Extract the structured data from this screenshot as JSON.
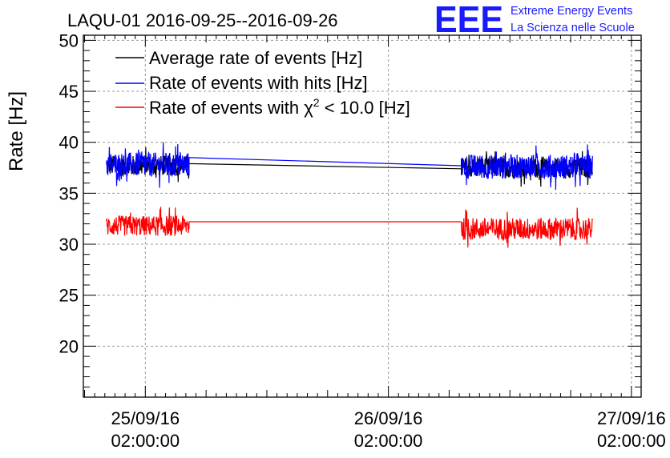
{
  "chart_data": {
    "type": "line",
    "title": "LAQU-01 2016-09-25--2016-09-26",
    "ylabel": "Rate [Hz]",
    "xlabel": "",
    "ylim": [
      15,
      50.5
    ],
    "xlim": [
      -0.255,
      2.04
    ],
    "grid": true,
    "legend_position": "top-left",
    "yticks": [
      20,
      25,
      30,
      35,
      40,
      45,
      50
    ],
    "ytick_labels": [
      "20",
      "25",
      "30",
      "35",
      "40",
      "45",
      "50"
    ],
    "xticks": [
      0,
      1,
      2
    ],
    "xtick_labels": [
      {
        "date": "25/09/16",
        "time": "02:00:00"
      },
      {
        "date": "26/09/16",
        "time": "02:00:00"
      },
      {
        "date": "27/09/16",
        "time": "02:00:00"
      }
    ],
    "series": [
      {
        "name": "Average rate of events [Hz]",
        "color": "#000000",
        "segments": [
          {
            "x_start": -0.16,
            "x_end": 0.18,
            "mean": 37.7,
            "noise": 1.0
          },
          {
            "x_start": 0.18,
            "x_end": 1.3,
            "line": [
              [
                0.18,
                37.9
              ],
              [
                1.3,
                37.4
              ]
            ]
          },
          {
            "x_start": 1.3,
            "x_end": 1.84,
            "mean": 37.5,
            "noise": 1.0
          }
        ]
      },
      {
        "name": "Rate of events with hits [Hz]",
        "color": "#0000ff",
        "segments": [
          {
            "x_start": -0.16,
            "x_end": 0.18,
            "mean": 37.8,
            "noise": 1.2
          },
          {
            "x_start": 0.18,
            "x_end": 1.3,
            "line": [
              [
                0.18,
                38.5
              ],
              [
                1.3,
                37.7
              ]
            ]
          },
          {
            "x_start": 1.3,
            "x_end": 1.84,
            "mean": 37.6,
            "noise": 1.2
          }
        ]
      },
      {
        "name": "Rate of events with χ² < 10.0 [Hz]",
        "color": "#ff0000",
        "legend_parts": {
          "before": "Rate of events with ",
          "chi": "χ",
          "sup": "2",
          "after": " < 10.0 [Hz]"
        },
        "segments": [
          {
            "x_start": -0.16,
            "x_end": 0.18,
            "mean": 31.8,
            "noise": 1.0
          },
          {
            "x_start": 0.18,
            "x_end": 1.3,
            "line": [
              [
                0.18,
                32.2
              ],
              [
                1.3,
                32.2
              ]
            ]
          },
          {
            "x_start": 1.3,
            "x_end": 1.84,
            "mean": 31.5,
            "noise": 1.1
          }
        ]
      }
    ]
  },
  "logo": {
    "letters": "EEE",
    "line1": "Extreme Energy Events",
    "line2": "La Scienza nelle Scuole",
    "color": "#1a1aff"
  }
}
